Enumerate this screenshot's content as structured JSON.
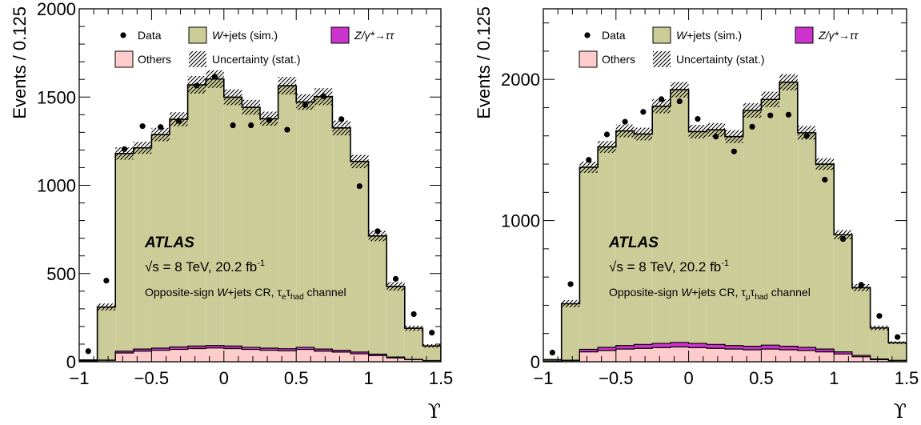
{
  "legend": {
    "data": "Data",
    "wjets_pre": "W",
    "wjets_post": "+jets (sim.)",
    "ztt_pre": "Z/",
    "ztt_gamma": "γ*",
    "ztt_post": "→ττ",
    "others": "Others",
    "uncertainty": "Uncertainty (stat.)"
  },
  "annotations": {
    "atlas": "ATLAS",
    "sqrt": "√s",
    "energy": " = 8 TeV, 20.2 fb",
    "lumi_exp": "-1",
    "cr_pre": "Opposite-sign ",
    "cr_w": "W",
    "cr_post": "+jets CR, ",
    "tau": "τ",
    "had": "had",
    "channel_word": " channel"
  },
  "colors": {
    "wjets": "#cccc99",
    "ztt": "#cc33cc",
    "others": "#ffcccc",
    "data": "#000000"
  },
  "chart_data": [
    {
      "type": "bar",
      "panel": "left",
      "lepton": "e",
      "xlabel": "ϒ",
      "ylabel": "Events / 0.125",
      "xlim": [
        -1,
        1.5
      ],
      "ylim": [
        0,
        2000
      ],
      "yticks": [
        0,
        500,
        1000,
        1500,
        2000
      ],
      "xticks": [
        -1,
        -0.5,
        0,
        0.5,
        1,
        1.5
      ],
      "legend_position": "top",
      "bin_edges": [
        -1.0,
        -0.875,
        -0.75,
        -0.625,
        -0.5,
        -0.375,
        -0.25,
        -0.125,
        0.0,
        0.125,
        0.25,
        0.375,
        0.5,
        0.625,
        0.75,
        0.875,
        1.0,
        1.125,
        1.25,
        1.375,
        1.5
      ],
      "series": [
        {
          "name": "Others",
          "values": [
            3,
            8,
            50,
            60,
            65,
            70,
            75,
            78,
            75,
            70,
            65,
            62,
            70,
            60,
            55,
            45,
            35,
            22,
            12,
            6
          ]
        },
        {
          "name": "Z/γ*→ττ",
          "values": [
            1,
            2,
            10,
            12,
            12,
            14,
            14,
            14,
            14,
            12,
            12,
            12,
            12,
            12,
            10,
            10,
            8,
            5,
            2,
            1
          ]
        },
        {
          "name": "W+jets (sim.)",
          "values": [
            6,
            300,
            1120,
            1140,
            1210,
            1290,
            1480,
            1510,
            1410,
            1360,
            1300,
            1490,
            1390,
            1430,
            1260,
            1080,
            670,
            400,
            176,
            83
          ]
        }
      ],
      "uncertainty": [
        3,
        20,
        35,
        35,
        38,
        40,
        50,
        50,
        45,
        42,
        40,
        50,
        45,
        48,
        42,
        38,
        30,
        25,
        15,
        10
      ],
      "data_points": [
        {
          "x": -0.9375,
          "y": 60
        },
        {
          "x": -0.8125,
          "y": 460
        },
        {
          "x": -0.6875,
          "y": 1205
        },
        {
          "x": -0.5625,
          "y": 1335
        },
        {
          "x": -0.4375,
          "y": 1330
        },
        {
          "x": -0.3125,
          "y": 1365
        },
        {
          "x": -0.1875,
          "y": 1565
        },
        {
          "x": -0.0625,
          "y": 1615
        },
        {
          "x": 0.0625,
          "y": 1340
        },
        {
          "x": 0.1875,
          "y": 1340
        },
        {
          "x": 0.3125,
          "y": 1370
        },
        {
          "x": 0.4375,
          "y": 1315
        },
        {
          "x": 0.5625,
          "y": 1455
        },
        {
          "x": 0.6875,
          "y": 1505
        },
        {
          "x": 0.8125,
          "y": 1375
        },
        {
          "x": 0.9375,
          "y": 995
        },
        {
          "x": 1.0625,
          "y": 740
        },
        {
          "x": 1.1875,
          "y": 470
        },
        {
          "x": 1.3125,
          "y": 270
        },
        {
          "x": 1.4375,
          "y": 165
        }
      ]
    },
    {
      "type": "bar",
      "panel": "right",
      "lepton": "μ",
      "xlabel": "ϒ",
      "ylabel": "Events / 0.125",
      "xlim": [
        -1,
        1.5
      ],
      "ylim": [
        0,
        2500
      ],
      "yticks": [
        0,
        1000,
        2000
      ],
      "xticks": [
        -1,
        -0.5,
        0,
        0.5,
        1,
        1.5
      ],
      "legend_position": "top",
      "bin_edges": [
        -1.0,
        -0.875,
        -0.75,
        -0.625,
        -0.5,
        -0.375,
        -0.25,
        -0.125,
        0.0,
        0.125,
        0.25,
        0.375,
        0.5,
        0.625,
        0.75,
        0.875,
        1.0,
        1.125,
        1.25,
        1.375,
        1.5
      ],
      "series": [
        {
          "name": "Others",
          "values": [
            3,
            8,
            70,
            80,
            90,
            95,
            100,
            105,
            100,
            95,
            90,
            85,
            90,
            85,
            80,
            70,
            55,
            35,
            15,
            8
          ]
        },
        {
          "name": "Z/γ*→ττ",
          "values": [
            2,
            3,
            18,
            22,
            25,
            28,
            30,
            32,
            30,
            28,
            25,
            25,
            28,
            25,
            22,
            20,
            15,
            10,
            5,
            2
          ]
        },
        {
          "name": "W+jets (sim.)",
          "values": [
            10,
            400,
            1290,
            1420,
            1520,
            1490,
            1680,
            1790,
            1500,
            1520,
            1480,
            1670,
            1740,
            1870,
            1520,
            1310,
            830,
            480,
            220,
            125
          ]
        }
      ],
      "uncertainty": [
        4,
        25,
        40,
        42,
        45,
        45,
        50,
        55,
        48,
        48,
        46,
        52,
        55,
        58,
        48,
        42,
        32,
        25,
        16,
        10
      ],
      "data_points": [
        {
          "x": -0.9375,
          "y": 65
        },
        {
          "x": -0.8125,
          "y": 550
        },
        {
          "x": -0.6875,
          "y": 1430
        },
        {
          "x": -0.5625,
          "y": 1610
        },
        {
          "x": -0.4375,
          "y": 1700
        },
        {
          "x": -0.3125,
          "y": 1770
        },
        {
          "x": -0.1875,
          "y": 1860
        },
        {
          "x": -0.0625,
          "y": 1845
        },
        {
          "x": 0.0625,
          "y": 1720
        },
        {
          "x": 0.1875,
          "y": 1595
        },
        {
          "x": 0.3125,
          "y": 1490
        },
        {
          "x": 0.4375,
          "y": 1665
        },
        {
          "x": 0.5625,
          "y": 1745
        },
        {
          "x": 0.6875,
          "y": 1750
        },
        {
          "x": 0.8125,
          "y": 1600
        },
        {
          "x": 0.9375,
          "y": 1290
        },
        {
          "x": 1.0625,
          "y": 870
        },
        {
          "x": 1.1875,
          "y": 545
        },
        {
          "x": 1.3125,
          "y": 325
        },
        {
          "x": 1.4375,
          "y": 175
        }
      ]
    }
  ]
}
